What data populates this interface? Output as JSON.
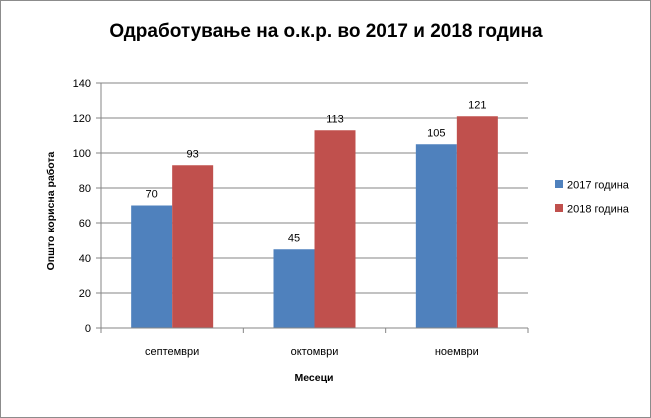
{
  "chart_data": {
    "type": "bar",
    "title": "Одработување на о.к.р. во 2017 и 2018 година",
    "xlabel": "Месеци",
    "ylabel": "Општо корисна работа",
    "categories": [
      "септември",
      "октомври",
      "ноември"
    ],
    "series": [
      {
        "name": "2017 година",
        "color": "#4f81bd",
        "values": [
          70,
          45,
          105
        ]
      },
      {
        "name": "2018 година",
        "color": "#c0504d",
        "values": [
          93,
          113,
          121
        ]
      }
    ],
    "ylim": [
      0,
      140
    ],
    "yticks": [
      0,
      20,
      40,
      60,
      80,
      100,
      120,
      140
    ],
    "grid": true,
    "legend": "right",
    "data_labels": true
  }
}
